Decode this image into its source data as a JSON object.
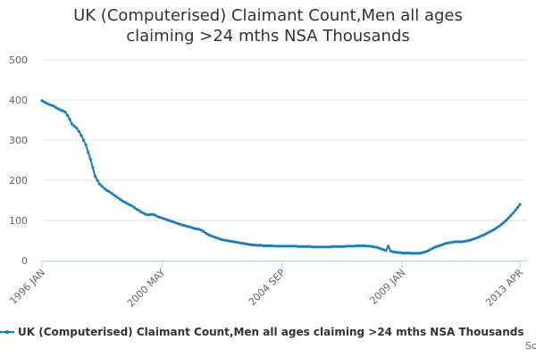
{
  "chart_data": {
    "type": "line",
    "title": "UK (Computerised) Claimant Count,Men all ages claiming >24 mths NSA Thousands",
    "source": "Source:",
    "categories": [
      "1996 JAN",
      null,
      null,
      null,
      null,
      null,
      null,
      null,
      null,
      null,
      null,
      null,
      null,
      null,
      null,
      null,
      null,
      null,
      null,
      null,
      null,
      null,
      null,
      null,
      null,
      null,
      null,
      null,
      null,
      null,
      null,
      null,
      null,
      null,
      null,
      null,
      null,
      null,
      null,
      null,
      null,
      null,
      null,
      null,
      null,
      null,
      null,
      null,
      null,
      null,
      null,
      null,
      "2000 MAY",
      null,
      null,
      null,
      null,
      null,
      null,
      null,
      null,
      null,
      null,
      null,
      null,
      null,
      null,
      null,
      null,
      null,
      null,
      null,
      null,
      null,
      null,
      null,
      null,
      null,
      null,
      null,
      null,
      null,
      null,
      null,
      null,
      null,
      null,
      null,
      null,
      null,
      null,
      null,
      null,
      null,
      null,
      null,
      null,
      null,
      null,
      null,
      null,
      null,
      null,
      null,
      "2004 SEP",
      null,
      null,
      null,
      null,
      null,
      null,
      null,
      null,
      null,
      null,
      null,
      null,
      null,
      null,
      null,
      null,
      null,
      null,
      null,
      null,
      null,
      null,
      null,
      null,
      null,
      null,
      null,
      null,
      null,
      null,
      null,
      null,
      null,
      null,
      null,
      null,
      null,
      null,
      null,
      null,
      null,
      null,
      null,
      null,
      null,
      null,
      null,
      null,
      null,
      null,
      null,
      "2009 JAN",
      null,
      null,
      null,
      null,
      null,
      null,
      null,
      null,
      null,
      null,
      null,
      null,
      null,
      null,
      null,
      null,
      null,
      null,
      null,
      null,
      null,
      null,
      null,
      null,
      null,
      null,
      null,
      null,
      null,
      null,
      null,
      null,
      null,
      null,
      null,
      null,
      null,
      null,
      null,
      null,
      null,
      null,
      null,
      null,
      null,
      null,
      null,
      null,
      null,
      null,
      "2013 APR"
    ],
    "series": [
      {
        "name": "UK (Computerised) Claimant Count,Men all ages claiming >24 mths NSA Thousands",
        "color": "#1a7bbd",
        "values": [
          398,
          395,
          392,
          389,
          387,
          385,
          381,
          378,
          375,
          373,
          370,
          362,
          352,
          340,
          335,
          330,
          322,
          312,
          300,
          288,
          270,
          252,
          232,
          210,
          200,
          190,
          185,
          180,
          175,
          172,
          168,
          164,
          160,
          156,
          152,
          148,
          145,
          142,
          139,
          136,
          132,
          128,
          125,
          121,
          118,
          115,
          114,
          115,
          115,
          113,
          110,
          108,
          106,
          104,
          102,
          100,
          98,
          96,
          94,
          92,
          90,
          88,
          87,
          85,
          84,
          82,
          80,
          79,
          78,
          76,
          72,
          68,
          65,
          62,
          60,
          58,
          56,
          54,
          52,
          51,
          50,
          49,
          48,
          47,
          46,
          45,
          44,
          43,
          42,
          41,
          40,
          39,
          39,
          38,
          38,
          38,
          37,
          37,
          37,
          37,
          37,
          36,
          36,
          36,
          36,
          36,
          36,
          36,
          36,
          36,
          36,
          35,
          35,
          35,
          35,
          35,
          35,
          34,
          34,
          34,
          34,
          34,
          34,
          34,
          34,
          34,
          35,
          35,
          35,
          35,
          35,
          35,
          36,
          36,
          36,
          36,
          37,
          37,
          37,
          37,
          37,
          36,
          36,
          35,
          34,
          33,
          31,
          29,
          27,
          25,
          36,
          24,
          22,
          21,
          20,
          20,
          19,
          19,
          19,
          19,
          18,
          18,
          18,
          18,
          19,
          20,
          22,
          24,
          27,
          30,
          33,
          35,
          37,
          39,
          41,
          43,
          44,
          45,
          46,
          47,
          47,
          47,
          47,
          48,
          49,
          50,
          52,
          54,
          56,
          58,
          61,
          63,
          66,
          69,
          72,
          75,
          78,
          82,
          86,
          90,
          95,
          100,
          106,
          112,
          118,
          125,
          132,
          140
        ]
      }
    ],
    "ylim": [
      0,
      500
    ],
    "yticks": [
      0,
      100,
      200,
      300,
      400,
      500
    ],
    "grid": true
  }
}
